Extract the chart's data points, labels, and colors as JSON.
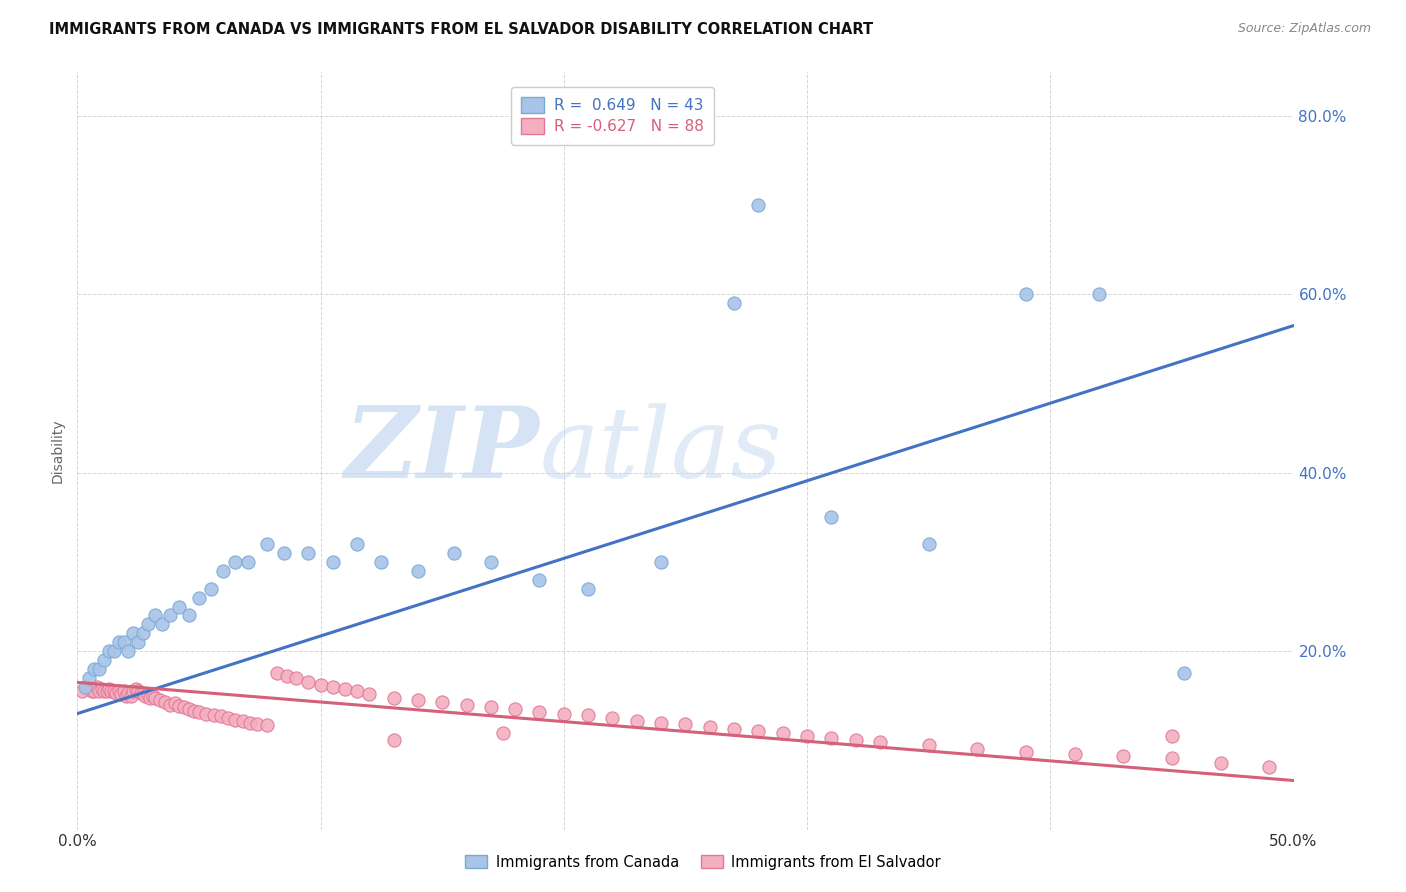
{
  "title": "IMMIGRANTS FROM CANADA VS IMMIGRANTS FROM EL SALVADOR DISABILITY CORRELATION CHART",
  "source": "Source: ZipAtlas.com",
  "ylabel": "Disability",
  "xlim": [
    0.0,
    0.5
  ],
  "ylim": [
    0.0,
    0.85
  ],
  "canada_color": "#a8c4e8",
  "canada_edge": "#7aaad4",
  "elsalvador_color": "#f4afc0",
  "elsalvador_edge": "#e07898",
  "line_canada_color": "#4472c4",
  "line_elsalvador_color": "#d4607a",
  "canada_R": 0.649,
  "canada_N": 43,
  "elsalvador_R": -0.627,
  "elsalvador_N": 88,
  "canada_line_x0": 0.0,
  "canada_line_y0": 0.13,
  "canada_line_x1": 0.5,
  "canada_line_y1": 0.565,
  "salvador_line_x0": 0.0,
  "salvador_line_y0": 0.165,
  "salvador_line_x1": 0.5,
  "salvador_line_y1": 0.055,
  "canada_scatter_x": [
    0.003,
    0.005,
    0.007,
    0.009,
    0.011,
    0.013,
    0.015,
    0.017,
    0.019,
    0.021,
    0.023,
    0.025,
    0.027,
    0.029,
    0.032,
    0.035,
    0.038,
    0.042,
    0.046,
    0.05,
    0.055,
    0.06,
    0.065,
    0.07,
    0.078,
    0.085,
    0.095,
    0.105,
    0.115,
    0.125,
    0.14,
    0.155,
    0.17,
    0.19,
    0.21,
    0.24,
    0.27,
    0.31,
    0.35,
    0.39,
    0.28,
    0.42,
    0.455
  ],
  "canada_scatter_y": [
    0.16,
    0.17,
    0.18,
    0.18,
    0.19,
    0.2,
    0.2,
    0.21,
    0.21,
    0.2,
    0.22,
    0.21,
    0.22,
    0.23,
    0.24,
    0.23,
    0.24,
    0.25,
    0.24,
    0.26,
    0.27,
    0.29,
    0.3,
    0.3,
    0.32,
    0.31,
    0.31,
    0.3,
    0.32,
    0.3,
    0.29,
    0.31,
    0.3,
    0.28,
    0.27,
    0.3,
    0.59,
    0.35,
    0.32,
    0.6,
    0.7,
    0.6,
    0.175
  ],
  "elsalvador_scatter_x": [
    0.002,
    0.004,
    0.006,
    0.007,
    0.008,
    0.009,
    0.01,
    0.011,
    0.012,
    0.013,
    0.014,
    0.015,
    0.016,
    0.017,
    0.018,
    0.019,
    0.02,
    0.021,
    0.022,
    0.023,
    0.024,
    0.025,
    0.026,
    0.027,
    0.028,
    0.029,
    0.03,
    0.031,
    0.032,
    0.034,
    0.036,
    0.038,
    0.04,
    0.042,
    0.044,
    0.046,
    0.048,
    0.05,
    0.053,
    0.056,
    0.059,
    0.062,
    0.065,
    0.068,
    0.071,
    0.074,
    0.078,
    0.082,
    0.086,
    0.09,
    0.095,
    0.1,
    0.105,
    0.11,
    0.115,
    0.12,
    0.13,
    0.14,
    0.15,
    0.16,
    0.17,
    0.18,
    0.19,
    0.2,
    0.21,
    0.22,
    0.23,
    0.24,
    0.25,
    0.26,
    0.27,
    0.28,
    0.29,
    0.3,
    0.31,
    0.32,
    0.33,
    0.35,
    0.37,
    0.39,
    0.41,
    0.43,
    0.45,
    0.47,
    0.49,
    0.13,
    0.175,
    0.45
  ],
  "elsalvador_scatter_y": [
    0.155,
    0.16,
    0.155,
    0.155,
    0.16,
    0.155,
    0.158,
    0.155,
    0.155,
    0.158,
    0.155,
    0.155,
    0.153,
    0.155,
    0.152,
    0.155,
    0.15,
    0.153,
    0.15,
    0.155,
    0.158,
    0.155,
    0.153,
    0.152,
    0.15,
    0.152,
    0.148,
    0.15,
    0.148,
    0.145,
    0.143,
    0.14,
    0.142,
    0.138,
    0.137,
    0.135,
    0.133,
    0.132,
    0.13,
    0.128,
    0.127,
    0.125,
    0.123,
    0.122,
    0.12,
    0.118,
    0.117,
    0.175,
    0.172,
    0.17,
    0.165,
    0.162,
    0.16,
    0.158,
    0.155,
    0.152,
    0.148,
    0.145,
    0.143,
    0.14,
    0.137,
    0.135,
    0.132,
    0.13,
    0.128,
    0.125,
    0.122,
    0.12,
    0.118,
    0.115,
    0.113,
    0.11,
    0.108,
    0.105,
    0.103,
    0.1,
    0.098,
    0.095,
    0.09,
    0.087,
    0.085,
    0.082,
    0.08,
    0.075,
    0.07,
    0.1,
    0.108,
    0.105
  ],
  "watermark_zip": "ZIP",
  "watermark_atlas": "atlas",
  "watermark_color_zip": "#c5d8f0",
  "watermark_color_atlas": "#c5d8f0",
  "bg_color": "#ffffff",
  "grid_color": "#cccccc"
}
